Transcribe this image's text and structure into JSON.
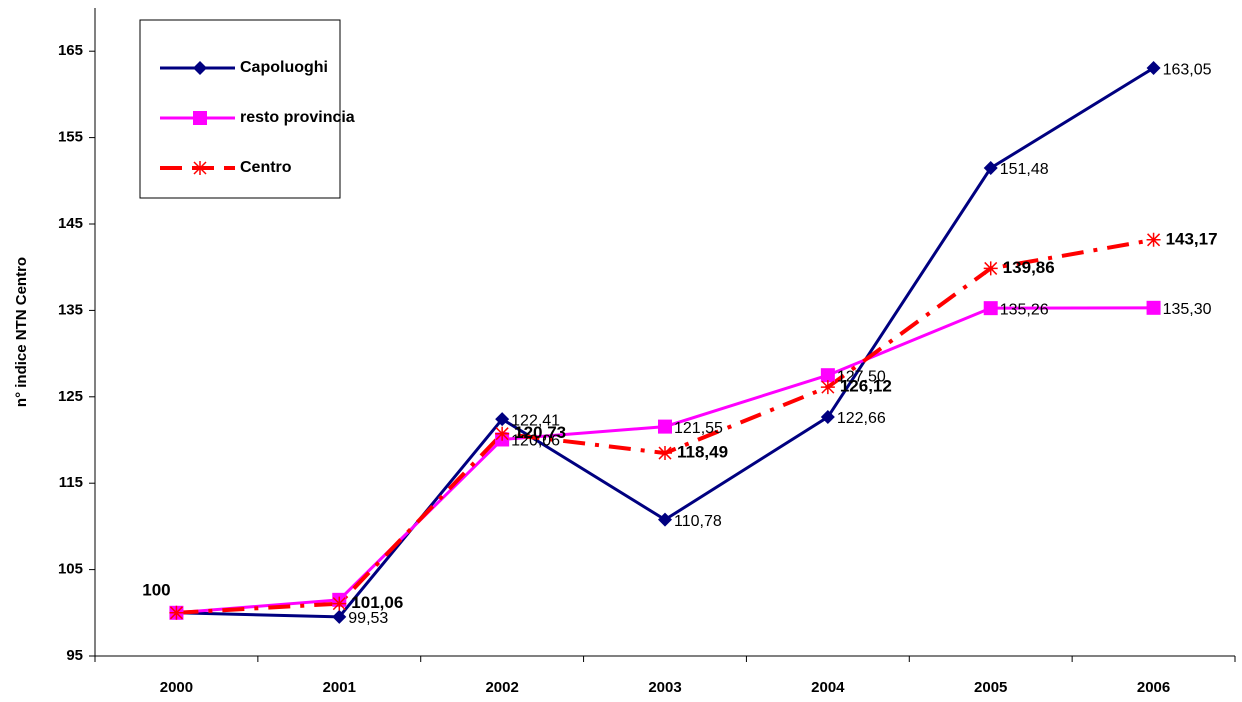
{
  "chart_data": {
    "type": "line",
    "y_label": "n° indice NTN Centro",
    "categories": [
      "2000",
      "2001",
      "2002",
      "2003",
      "2004",
      "2005",
      "2006"
    ],
    "ylim": [
      95,
      170
    ],
    "yticks": [
      95,
      105,
      115,
      125,
      135,
      145,
      155,
      165
    ],
    "grid": false,
    "legend": "top-left",
    "series": [
      {
        "name": "Capoluoghi",
        "color": "#000080",
        "marker": "diamond",
        "dashed": false,
        "bold_labels": false,
        "values": [
          100,
          99.53,
          122.41,
          110.78,
          122.66,
          151.48,
          163.05
        ],
        "value_labels": [
          null,
          "99,53",
          "122,41",
          "110,78",
          "122,66",
          "151,48",
          "163,05"
        ]
      },
      {
        "name": "resto provincia",
        "color": "#ff00ff",
        "marker": "square",
        "dashed": false,
        "bold_labels": false,
        "values": [
          100,
          101.5,
          120.06,
          121.55,
          127.5,
          135.26,
          135.3
        ],
        "value_labels": [
          null,
          null,
          "120,06",
          "121,55",
          "127,50",
          "135,26",
          "135,30"
        ]
      },
      {
        "name": "Centro",
        "color": "#ff0000",
        "marker": "asterisk",
        "dashed": true,
        "bold_labels": true,
        "values": [
          100,
          101.06,
          120.73,
          118.49,
          126.12,
          139.86,
          143.17
        ],
        "value_labels": [
          "100",
          "101,06",
          "120,73",
          "118,49",
          "126,12",
          "139,86",
          "143,17"
        ]
      }
    ]
  }
}
